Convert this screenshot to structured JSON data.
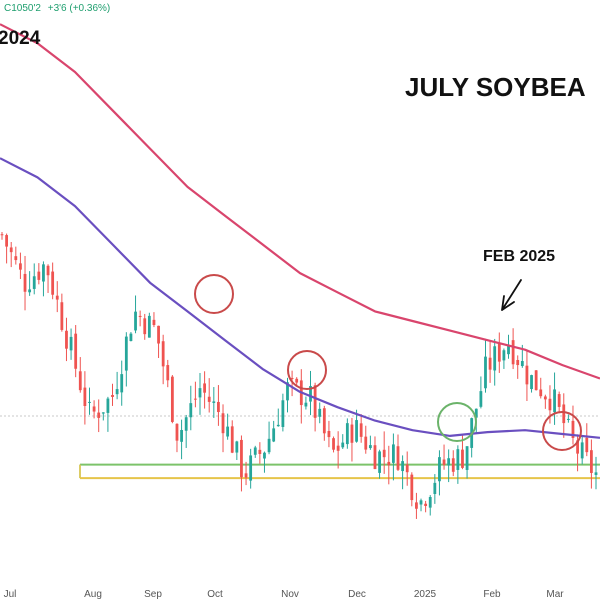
{
  "header": {
    "ohlc_close": "C1050'2",
    "ohlc_change": "+3'6 (+0.36%)",
    "year_label": "2024",
    "title": "JULY SOYBEA"
  },
  "annotation": {
    "text": "FEB 2025"
  },
  "colors": {
    "up": "#26a69a",
    "down": "#ef5350",
    "ma_long": "#d9456d",
    "ma_short": "#6a4fc0",
    "support_green": "#7cc36a",
    "support_yellow": "#e6c44a",
    "circle_red": "#c94a4a",
    "circle_green": "#6bb36a"
  },
  "chart_data": {
    "type": "line",
    "x_tick_labels": [
      "Jul",
      "Aug",
      "Sep",
      "Oct",
      "Nov",
      "Dec",
      "2025",
      "Feb",
      "Mar"
    ],
    "series": [
      {
        "values": [
          11.3,
          11.05,
          11.15,
          10.75,
          10.35,
          10.45,
          10.9,
          10.8,
          10.25,
          10.5,
          10.35,
          10.05,
          10.2,
          10.5,
          10.45,
          10.15,
          10.3,
          10.15,
          10.15,
          9.9,
          10.1,
          10.15,
          10.6,
          10.75,
          10.55,
          10.45,
          10.2,
          10.05
        ]
      },
      {
        "values": [
          12.4,
          12.3,
          12.15,
          11.95,
          11.75,
          11.55,
          11.4,
          11.25,
          11.1,
          11.0,
          10.9,
          10.85,
          10.8,
          10.75,
          10.7,
          10.62,
          10.55
        ]
      },
      {
        "values": [
          11.7,
          11.6,
          11.45,
          11.25,
          11.05,
          10.9,
          10.75,
          10.6,
          10.48,
          10.4,
          10.33,
          10.28,
          10.25,
          10.27,
          10.28,
          10.26,
          10.24
        ]
      },
      {
        "values": [
          10.1,
          10.1
        ]
      },
      {
        "values": [
          10.03,
          10.03
        ]
      }
    ]
  }
}
